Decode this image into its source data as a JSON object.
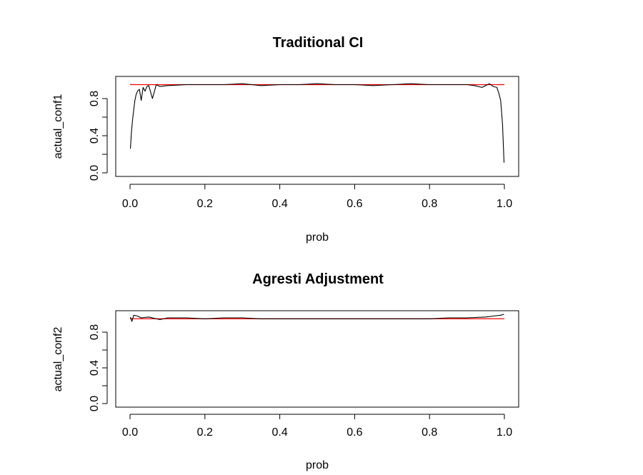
{
  "chart_data": [
    {
      "type": "line",
      "title": "Traditional CI",
      "xlabel": "prob",
      "ylabel": "actual_conf1",
      "xlim": [
        0,
        1
      ],
      "ylim": [
        0,
        1
      ],
      "x_ticks": [
        "0.0",
        "0.2",
        "0.4",
        "0.6",
        "0.8",
        "1.0"
      ],
      "y_ticks": [
        "0.0",
        "0.4",
        "0.8"
      ],
      "y_tick_marks": [
        0,
        0.2,
        0.4,
        0.6,
        0.8
      ],
      "reference_line": {
        "y": 0.95,
        "color": "#ff0000"
      },
      "series": [
        {
          "color": "#000000",
          "x": [
            0.001,
            0.004,
            0.007,
            0.01,
            0.013,
            0.016,
            0.02,
            0.025,
            0.03,
            0.035,
            0.04,
            0.045,
            0.05,
            0.06,
            0.07,
            0.08,
            0.1,
            0.15,
            0.2,
            0.25,
            0.3,
            0.35,
            0.4,
            0.45,
            0.5,
            0.55,
            0.6,
            0.65,
            0.7,
            0.75,
            0.8,
            0.85,
            0.9,
            0.92,
            0.94,
            0.96,
            0.97,
            0.98,
            0.985,
            0.99,
            0.995,
            0.999
          ],
          "y": [
            0.26,
            0.45,
            0.58,
            0.68,
            0.78,
            0.84,
            0.88,
            0.9,
            0.78,
            0.92,
            0.88,
            0.93,
            0.94,
            0.8,
            0.95,
            0.93,
            0.94,
            0.95,
            0.95,
            0.95,
            0.96,
            0.94,
            0.95,
            0.95,
            0.96,
            0.95,
            0.95,
            0.94,
            0.95,
            0.96,
            0.95,
            0.95,
            0.95,
            0.94,
            0.92,
            0.96,
            0.93,
            0.92,
            0.86,
            0.78,
            0.52,
            0.11
          ]
        }
      ]
    },
    {
      "type": "line",
      "title": "Agresti Adjustment",
      "xlabel": "prob",
      "ylabel": "actual_conf2",
      "xlim": [
        0,
        1
      ],
      "ylim": [
        0,
        1
      ],
      "x_ticks": [
        "0.0",
        "0.2",
        "0.4",
        "0.6",
        "0.8",
        "1.0"
      ],
      "y_ticks": [
        "0.0",
        "0.4",
        "0.8"
      ],
      "y_tick_marks": [
        0,
        0.2,
        0.4,
        0.6,
        0.8
      ],
      "reference_line": {
        "y": 0.95,
        "color": "#ff0000"
      },
      "series": [
        {
          "color": "#000000",
          "x": [
            0.001,
            0.005,
            0.01,
            0.02,
            0.03,
            0.05,
            0.08,
            0.1,
            0.15,
            0.2,
            0.25,
            0.3,
            0.35,
            0.4,
            0.45,
            0.5,
            0.55,
            0.6,
            0.65,
            0.7,
            0.75,
            0.8,
            0.85,
            0.9,
            0.95,
            0.97,
            0.99,
            0.999
          ],
          "y": [
            0.97,
            0.92,
            0.99,
            0.98,
            0.96,
            0.97,
            0.94,
            0.96,
            0.96,
            0.95,
            0.96,
            0.96,
            0.95,
            0.95,
            0.95,
            0.95,
            0.95,
            0.95,
            0.95,
            0.95,
            0.95,
            0.95,
            0.96,
            0.96,
            0.97,
            0.98,
            0.99,
            1.0
          ]
        }
      ]
    }
  ]
}
